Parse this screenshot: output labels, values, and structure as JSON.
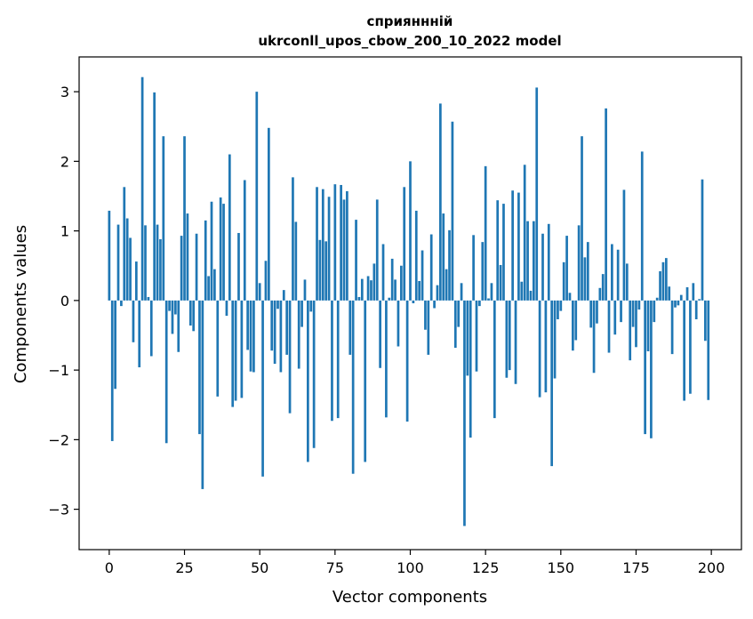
{
  "chart_data": {
    "type": "bar",
    "title": "сприяннній",
    "subtitle": "ukrconll_upos_cbow_200_10_2022 model",
    "xlabel": "Vector components",
    "ylabel": "Components values",
    "xlim": [
      -10,
      210
    ],
    "ylim": [
      -3.58,
      3.5
    ],
    "xticks": [
      0,
      25,
      50,
      75,
      100,
      125,
      150,
      175,
      200
    ],
    "xtick_labels": [
      "0",
      "25",
      "50",
      "75",
      "100",
      "125",
      "150",
      "175",
      "200"
    ],
    "yticks": [
      -3,
      -2,
      -1,
      0,
      1,
      2,
      3
    ],
    "ytick_labels": [
      "−3",
      "−2",
      "−1",
      "0",
      "1",
      "2",
      "3"
    ],
    "grid": false,
    "bar_color": "#1f77b4",
    "x": [
      0,
      1,
      2,
      3,
      4,
      5,
      6,
      7,
      8,
      9,
      10,
      11,
      12,
      13,
      14,
      15,
      16,
      17,
      18,
      19,
      20,
      21,
      22,
      23,
      24,
      25,
      26,
      27,
      28,
      29,
      30,
      31,
      32,
      33,
      34,
      35,
      36,
      37,
      38,
      39,
      40,
      41,
      42,
      43,
      44,
      45,
      46,
      47,
      48,
      49,
      50,
      51,
      52,
      53,
      54,
      55,
      56,
      57,
      58,
      59,
      60,
      61,
      62,
      63,
      64,
      65,
      66,
      67,
      68,
      69,
      70,
      71,
      72,
      73,
      74,
      75,
      76,
      77,
      78,
      79,
      80,
      81,
      82,
      83,
      84,
      85,
      86,
      87,
      88,
      89,
      90,
      91,
      92,
      93,
      94,
      95,
      96,
      97,
      98,
      99,
      100,
      101,
      102,
      103,
      104,
      105,
      106,
      107,
      108,
      109,
      110,
      111,
      112,
      113,
      114,
      115,
      116,
      117,
      118,
      119,
      120,
      121,
      122,
      123,
      124,
      125,
      126,
      127,
      128,
      129,
      130,
      131,
      132,
      133,
      134,
      135,
      136,
      137,
      138,
      139,
      140,
      141,
      142,
      143,
      144,
      145,
      146,
      147,
      148,
      149,
      150,
      151,
      152,
      153,
      154,
      155,
      156,
      157,
      158,
      159,
      160,
      161,
      162,
      163,
      164,
      165,
      166,
      167,
      168,
      169,
      170,
      171,
      172,
      173,
      174,
      175,
      176,
      177,
      178,
      179,
      180,
      181,
      182,
      183,
      184,
      185,
      186,
      187,
      188,
      189,
      190,
      191,
      192,
      193,
      194,
      195,
      196,
      197,
      198,
      199
    ],
    "values": [
      1.29,
      -2.02,
      -1.27,
      1.09,
      -0.08,
      1.63,
      1.18,
      0.9,
      -0.6,
      0.56,
      -0.96,
      3.21,
      1.08,
      0.05,
      -0.8,
      2.99,
      1.09,
      0.88,
      2.36,
      -2.05,
      -0.15,
      -0.48,
      -0.2,
      -0.74,
      0.93,
      2.36,
      1.25,
      -0.36,
      -0.44,
      0.96,
      -1.92,
      -2.71,
      1.15,
      0.35,
      1.42,
      0.45,
      -1.38,
      1.48,
      1.39,
      -0.22,
      2.1,
      -1.53,
      -1.44,
      0.97,
      -1.4,
      1.73,
      -0.71,
      -1.02,
      -1.03,
      3.0,
      0.25,
      -2.53,
      0.57,
      2.48,
      -0.72,
      -0.91,
      -0.12,
      -1.03,
      0.15,
      -0.78,
      -1.62,
      1.77,
      1.13,
      -0.98,
      -0.38,
      0.3,
      -2.32,
      -0.16,
      -2.12,
      1.63,
      0.87,
      1.6,
      0.85,
      1.49,
      -1.73,
      1.67,
      -1.69,
      1.66,
      1.45,
      1.57,
      -0.78,
      -2.49,
      1.16,
      0.05,
      0.31,
      -2.32,
      0.35,
      0.29,
      0.53,
      1.45,
      -0.97,
      0.81,
      -1.68,
      0.04,
      0.6,
      0.3,
      -0.66,
      0.5,
      1.63,
      -1.74,
      2.0,
      -0.04,
      1.29,
      0.28,
      0.72,
      -0.42,
      -0.78,
      0.95,
      -0.11,
      0.22,
      2.83,
      1.25,
      0.45,
      1.01,
      2.57,
      -0.68,
      -0.38,
      0.25,
      -3.24,
      -1.08,
      -1.97,
      0.94,
      -1.02,
      -0.08,
      0.84,
      1.93,
      0.03,
      0.25,
      -1.69,
      1.44,
      0.51,
      1.39,
      -1.11,
      -1.0,
      1.58,
      -1.2,
      1.55,
      0.27,
      1.95,
      1.14,
      0.14,
      1.14,
      3.06,
      -1.39,
      0.96,
      -1.32,
      1.1,
      -2.38,
      -1.12,
      -0.27,
      -0.15,
      0.55,
      0.93,
      0.11,
      -0.72,
      -0.57,
      1.08,
      2.36,
      0.62,
      0.84,
      -0.39,
      -1.04,
      -0.33,
      0.18,
      0.38,
      2.76,
      -0.75,
      0.81,
      -0.49,
      0.73,
      -0.31,
      1.59,
      0.53,
      -0.86,
      -0.38,
      -0.67,
      -0.13,
      2.14,
      -1.92,
      -0.73,
      -1.98,
      -0.31,
      0.04,
      0.42,
      0.55,
      0.61,
      0.2,
      -0.77,
      -0.1,
      -0.07,
      0.08,
      -1.44,
      0.19,
      -1.34,
      0.25,
      -0.27,
      0.02,
      1.74,
      -0.58,
      -1.43
    ]
  }
}
